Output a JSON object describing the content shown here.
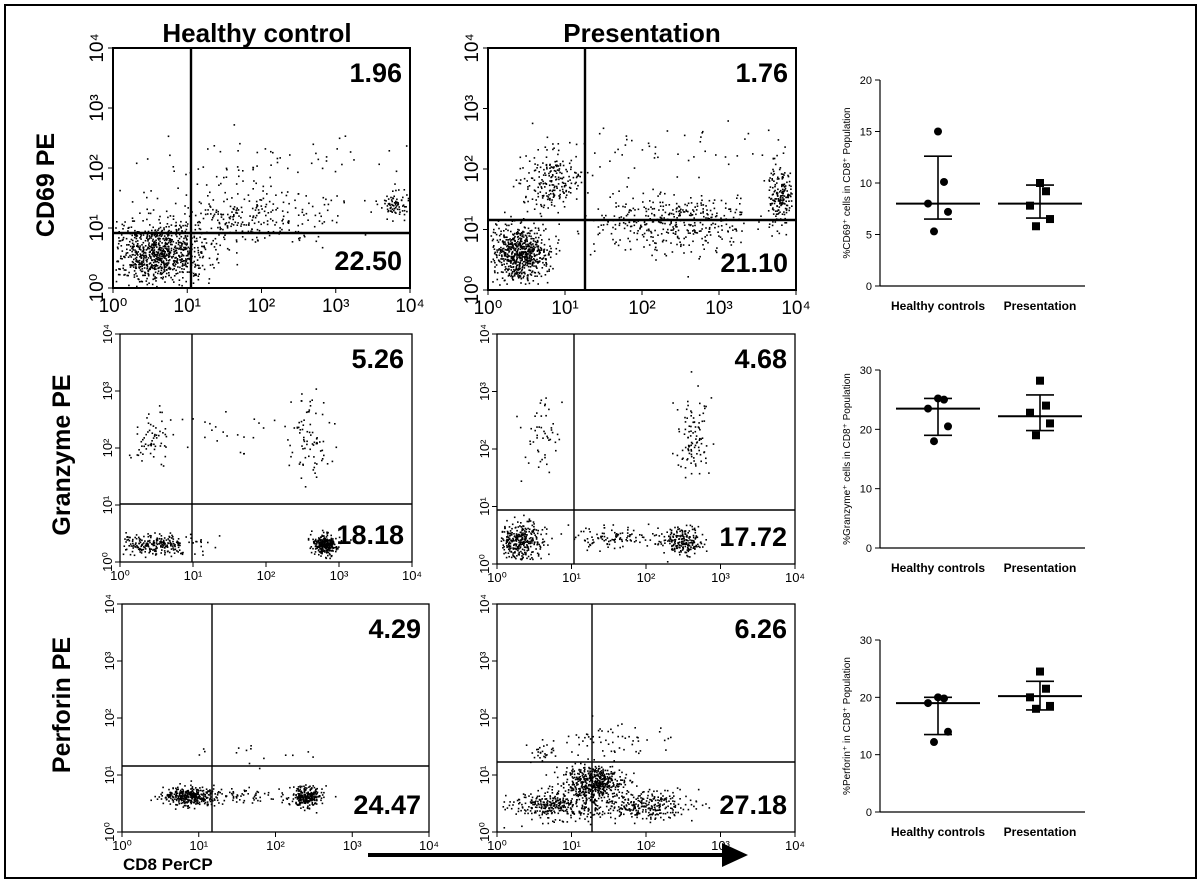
{
  "column_headers": {
    "healthy": "Healthy control",
    "presentation": "Presentation"
  },
  "row_labels": [
    "CD69 PE",
    "Granzyme  PE",
    "Perforin  PE"
  ],
  "x_axis_label": "CD8 PerCP",
  "flow_plots": [
    {
      "quadrant_upper_right": "1.96",
      "quadrant_lower_right": "22.50"
    },
    {
      "quadrant_upper_right": "1.76",
      "quadrant_lower_right": "21.10"
    },
    {
      "quadrant_upper_right": "5.26",
      "quadrant_lower_right": "18.18"
    },
    {
      "quadrant_upper_right": "4.68",
      "quadrant_lower_right": "17.72"
    },
    {
      "quadrant_upper_right": "4.29",
      "quadrant_lower_right": "24.47"
    },
    {
      "quadrant_upper_right": "6.26",
      "quadrant_lower_right": "27.18"
    }
  ],
  "flow_axis": {
    "ticks": [
      "10⁰",
      "10¹",
      "10²",
      "10³",
      "10⁴"
    ]
  },
  "chart_data": [
    {
      "type": "scatter",
      "ylabel": "%CD69⁺ cells in CD8⁺ Population",
      "categories": [
        "Healthy controls",
        "Presentation"
      ],
      "ylim": [
        0,
        20
      ],
      "yticks": [
        0,
        5,
        10,
        15,
        20
      ],
      "groups": [
        {
          "category": "Healthy controls",
          "marker": "circle",
          "values": [
            15.0,
            10.1,
            8.0,
            7.2,
            5.3
          ],
          "median": 8.0,
          "err_low": 6.5,
          "err_high": 12.6
        },
        {
          "category": "Presentation",
          "marker": "square",
          "values": [
            10.0,
            9.2,
            7.8,
            6.5,
            5.8
          ],
          "median": 8.0,
          "err_low": 6.6,
          "err_high": 9.8
        }
      ]
    },
    {
      "type": "scatter",
      "ylabel": "%Granzyme⁺ cells in CD8⁺ Population",
      "categories": [
        "Healthy controls",
        "Presentation"
      ],
      "ylim": [
        0,
        30
      ],
      "yticks": [
        0,
        10,
        20,
        30
      ],
      "groups": [
        {
          "category": "Healthy controls",
          "marker": "circle",
          "values": [
            25.2,
            25.0,
            23.5,
            20.5,
            18.0
          ],
          "median": 23.5,
          "err_low": 19.0,
          "err_high": 25.2
        },
        {
          "category": "Presentation",
          "marker": "square",
          "values": [
            28.2,
            24.0,
            22.8,
            21.0,
            19.0
          ],
          "median": 22.2,
          "err_low": 19.8,
          "err_high": 25.8
        }
      ]
    },
    {
      "type": "scatter",
      "ylabel": "%Perforin⁺ in CD8⁺ Population",
      "categories": [
        "Healthy controls",
        "Presentation"
      ],
      "ylim": [
        0,
        30
      ],
      "yticks": [
        0,
        10,
        20,
        30
      ],
      "groups": [
        {
          "category": "Healthy controls",
          "marker": "circle",
          "values": [
            20.0,
            19.8,
            19.0,
            14.0,
            12.2
          ],
          "median": 19.0,
          "err_low": 13.5,
          "err_high": 20.0
        },
        {
          "category": "Presentation",
          "marker": "square",
          "values": [
            24.5,
            21.5,
            20.0,
            18.5,
            18.0
          ],
          "median": 20.2,
          "err_low": 17.8,
          "err_high": 22.8
        }
      ]
    }
  ]
}
